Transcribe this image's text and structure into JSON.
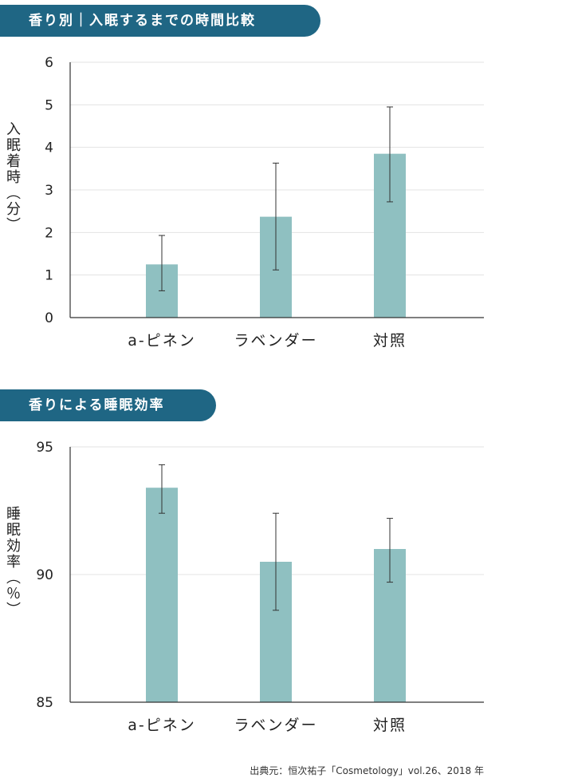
{
  "chart_data": [
    {
      "type": "bar",
      "title": "香り別｜入眠するまでの時間比較",
      "ylabel": "入眠着時（分）",
      "xlabel": "",
      "categories": [
        "a-ピネン",
        "ラベンダー",
        "対照"
      ],
      "values": [
        1.25,
        2.37,
        3.85
      ],
      "error_low": [
        0.63,
        1.12,
        2.72
      ],
      "error_high": [
        1.93,
        3.63,
        4.95
      ],
      "ylim": [
        0,
        6
      ],
      "yticks": [
        "0",
        "1",
        "2",
        "3",
        "4",
        "5",
        "6"
      ],
      "grid": true,
      "bar_color": "#8fc0c1"
    },
    {
      "type": "bar",
      "title": "香りによる睡眠効率",
      "ylabel": "睡眠効率（％）",
      "xlabel": "",
      "categories": [
        "a-ピネン",
        "ラベンダー",
        "対照"
      ],
      "values": [
        93.4,
        90.5,
        91.0
      ],
      "error_low": [
        92.4,
        88.6,
        89.7
      ],
      "error_high": [
        94.3,
        92.4,
        92.2
      ],
      "ylim": [
        85,
        95
      ],
      "yticks": [
        "85",
        "90",
        "95"
      ],
      "grid": true,
      "bar_color": "#8fc0c1"
    }
  ],
  "source": "出典元：恒次祐子「Cosmetology」vol.26、2018 年"
}
